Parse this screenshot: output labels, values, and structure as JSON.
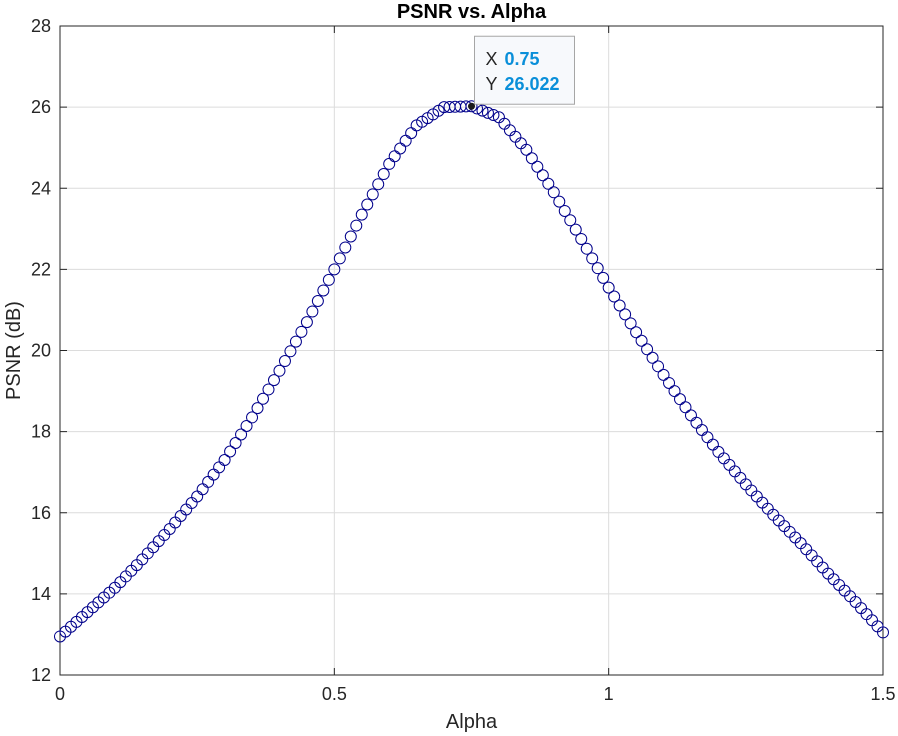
{
  "chart_data": {
    "type": "scatter",
    "title": "PSNR vs. Alpha",
    "xlabel": "Alpha",
    "ylabel": "PSNR (dB)",
    "xlim": [
      0,
      1.5
    ],
    "ylim": [
      12,
      28
    ],
    "xticks": [
      0,
      0.5,
      1,
      1.5
    ],
    "xtick_labels": [
      "0",
      "0.5",
      "1",
      "1.5"
    ],
    "yticks": [
      12,
      14,
      16,
      18,
      20,
      22,
      24,
      26,
      28
    ],
    "ytick_labels": [
      "12",
      "14",
      "16",
      "18",
      "20",
      "22",
      "24",
      "26",
      "28"
    ],
    "grid": true,
    "marker": "circle-open",
    "colors": {
      "marker": "#00008b",
      "grid": "#dcdcdc",
      "axis": "#262626",
      "datatip_value": "#0a8fd9"
    },
    "series": [
      {
        "x_range": [
          0,
          1.5
        ],
        "x_step": 0.01,
        "x_known": [
          0,
          0.05,
          0.1,
          0.15,
          0.2,
          0.25,
          0.3,
          0.35,
          0.4,
          0.45,
          0.5,
          0.55,
          0.6,
          0.65,
          0.7,
          0.75,
          0.8,
          0.85,
          0.9,
          0.95,
          1.0,
          1.05,
          1.1,
          1.15,
          1.2,
          1.25,
          1.3,
          1.35,
          1.4,
          1.45,
          1.5
        ],
        "y_known": [
          12.95,
          13.55,
          14.15,
          14.85,
          15.6,
          16.4,
          17.3,
          18.35,
          19.5,
          20.7,
          22.0,
          23.35,
          24.6,
          25.55,
          26.0,
          26.022,
          25.75,
          24.95,
          23.9,
          22.75,
          21.55,
          20.45,
          19.4,
          18.4,
          17.5,
          16.7,
          15.95,
          15.25,
          14.5,
          13.8,
          13.05
        ]
      }
    ],
    "datatip": {
      "x_label": "X",
      "y_label": "Y",
      "x_value": "0.75",
      "y_value": "26.022",
      "x": 0.75,
      "y": 26.022
    }
  }
}
